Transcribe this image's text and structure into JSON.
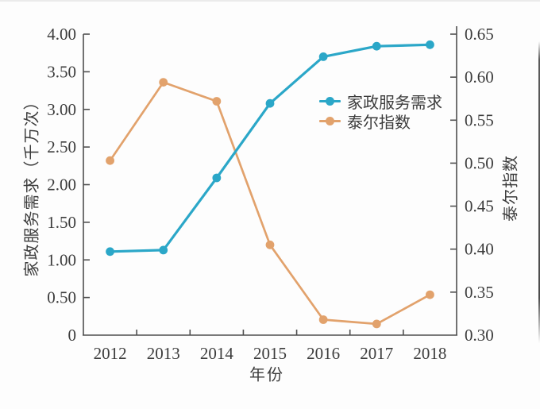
{
  "chart_data": {
    "type": "line",
    "categories": [
      "2012",
      "2013",
      "2014",
      "2015",
      "2016",
      "2017",
      "2018"
    ],
    "series": [
      {
        "id": "demand",
        "name": "家政服务需求",
        "axis": "left",
        "color": "#2ba7c8",
        "marker": "circle",
        "values": [
          1.11,
          1.13,
          2.09,
          3.08,
          3.7,
          3.84,
          3.86
        ]
      },
      {
        "id": "theil",
        "name": "泰尔指数",
        "axis": "right",
        "color": "#e2a26c",
        "marker": "circle",
        "values": [
          0.503,
          0.594,
          0.572,
          0.405,
          0.318,
          0.313,
          0.347
        ]
      }
    ],
    "left_axis": {
      "label": "家政服务需求（千万次）",
      "min": 0,
      "max": 4,
      "step": 0.5,
      "zero_label": "0"
    },
    "right_axis": {
      "label": "泰尔指数",
      "min": 0.3,
      "max": 0.65,
      "step": 0.05
    },
    "x_axis": {
      "label": "年份"
    },
    "legend": {
      "position": "center-right"
    },
    "grid": false,
    "colors": {
      "text": "#3c3c3c",
      "axis": "#4f4f4f",
      "background": "#fdfdfd"
    }
  }
}
